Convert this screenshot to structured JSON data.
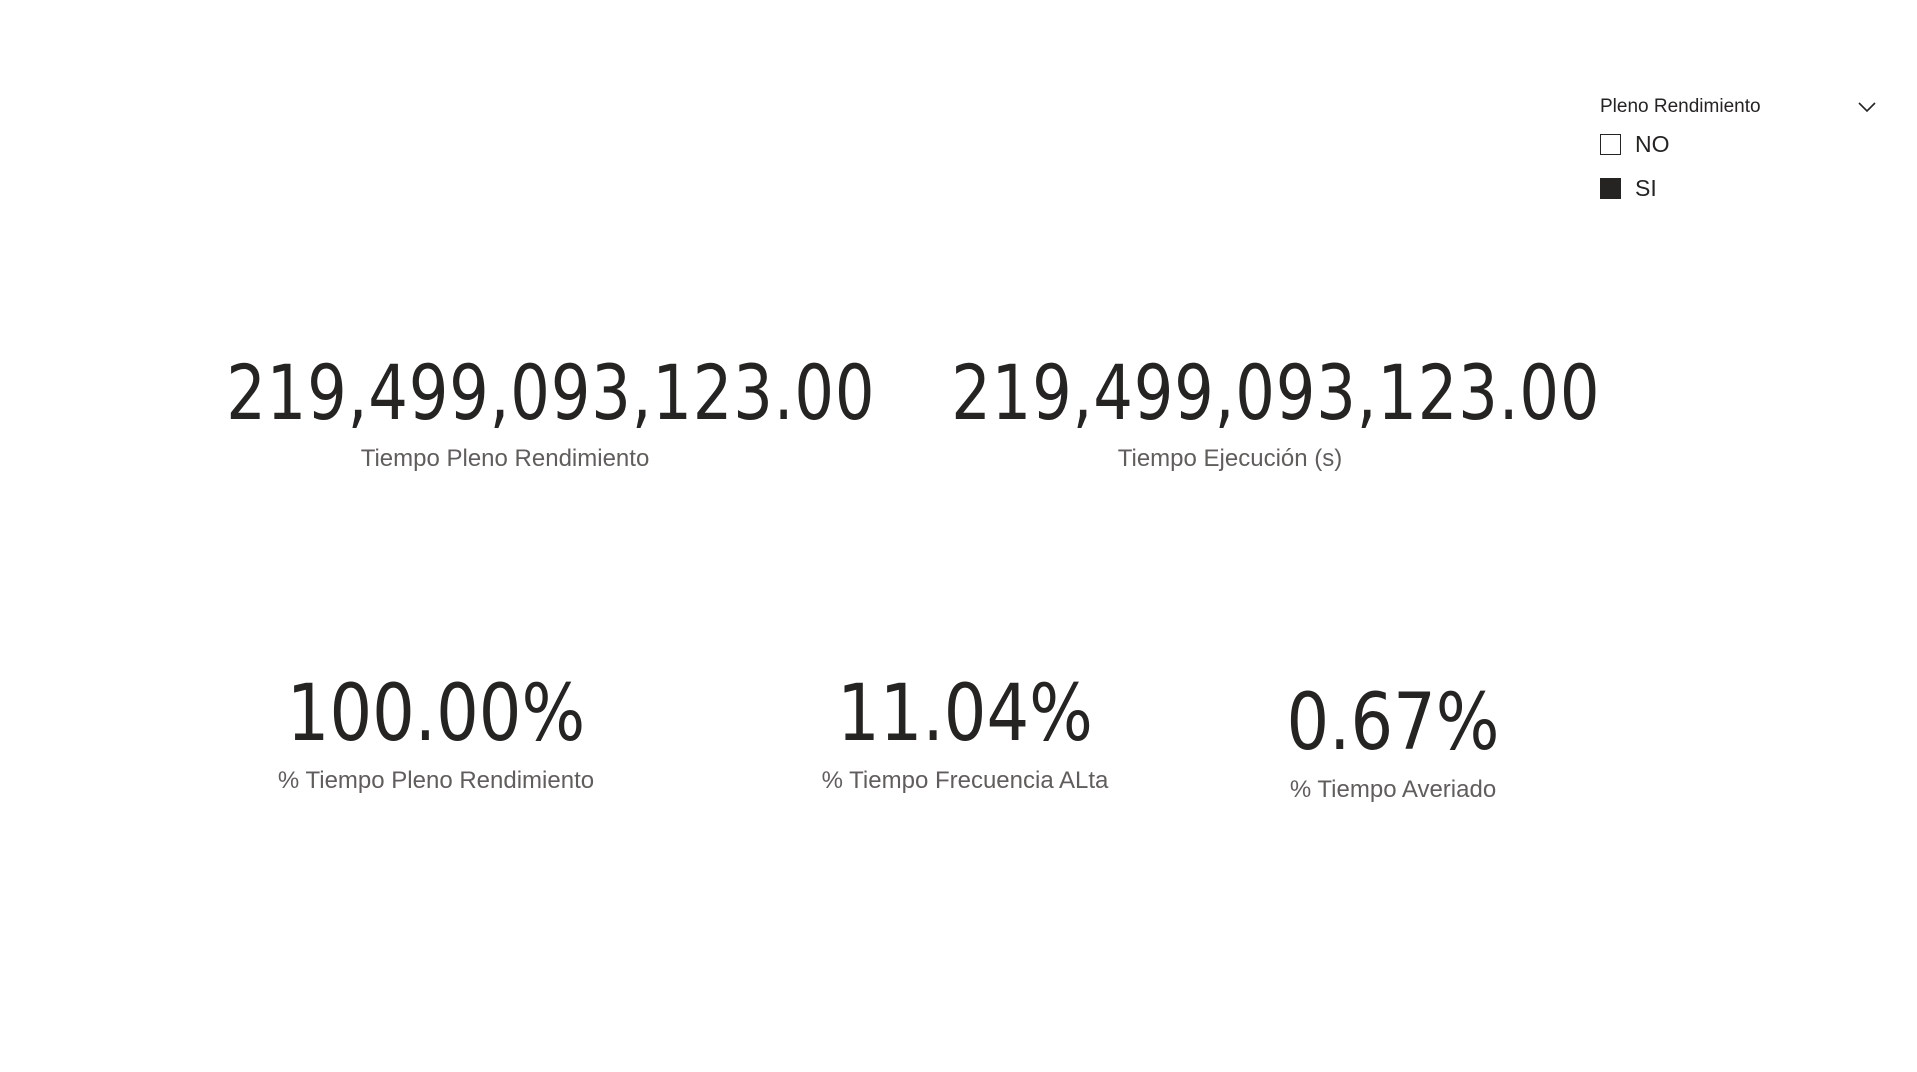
{
  "slicer": {
    "title": "Pleno Rendimiento",
    "chevron_icon": "chevron-down-icon",
    "options": [
      {
        "label": "NO",
        "checked": false
      },
      {
        "label": "SI",
        "checked": true
      }
    ]
  },
  "cards": {
    "tiempo_pleno_rendimiento": {
      "value": "219,499,093,123.00",
      "label": "Tiempo Pleno Rendimiento"
    },
    "tiempo_ejecucion": {
      "value": "219,499,093,123.00",
      "label": "Tiempo Ejecución (s)"
    },
    "pct_tiempo_pleno_rendimiento": {
      "value": "100.00%",
      "label": "% Tiempo Pleno Rendimiento"
    },
    "pct_tiempo_frecuencia_alta": {
      "value": "11.04%",
      "label": "% Tiempo Frecuencia ALta"
    },
    "pct_tiempo_averiado": {
      "value": "0.67%",
      "label": "% Tiempo Averiado"
    }
  },
  "colors": {
    "text_primary": "#252423",
    "text_secondary": "#605e5c",
    "background": "#ffffff"
  }
}
